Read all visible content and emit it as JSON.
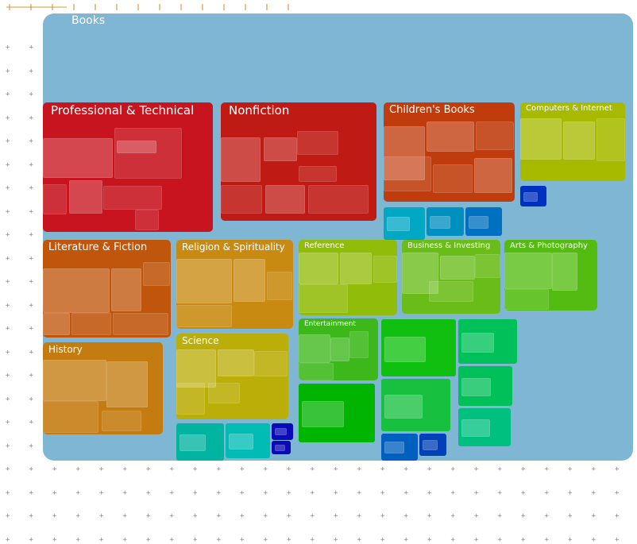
{
  "chart_data": {
    "type": "treemap",
    "title": "Books",
    "root_color": "#7fb6d3",
    "categories": [
      {
        "label": "Professional & Technical",
        "color": "#c8141e",
        "font": 15
      },
      {
        "label": "Nonfiction",
        "color": "#c01a14",
        "font": 15
      },
      {
        "label": "Children's Books",
        "color": "#c03c0c",
        "font": 13
      },
      {
        "label": "Computers & Internet",
        "color": "#a8ba00",
        "font": 10
      },
      {
        "label": "Literature & Fiction",
        "color": "#c0560c",
        "font": 13
      },
      {
        "label": "Religion & Spirituality",
        "color": "#c88a10",
        "font": 12
      },
      {
        "label": "Reference",
        "color": "#92bc0a",
        "font": 10
      },
      {
        "label": "Business & Investing",
        "color": "#6abc18",
        "font": 10
      },
      {
        "label": "Arts & Photography",
        "color": "#54bc10",
        "font": 10
      },
      {
        "label": "History",
        "color": "#c47c10",
        "font": 12
      },
      {
        "label": "Science",
        "color": "#bcae08",
        "font": 12
      },
      {
        "label": "Entertainment",
        "color": "#3cb81a",
        "font": 9
      }
    ],
    "unlabeled_tiles": [
      "#00a8c4",
      "#0090c0",
      "#0070c0",
      "#00b4a0",
      "#00bcb4",
      "#0a0ab8",
      "#0a0ab8",
      "#10c010",
      "#00b400",
      "#00c05a",
      "#18c040",
      "#00c05a",
      "#00c080",
      "#0060c0",
      "#0040b8",
      "#0030c0"
    ]
  }
}
